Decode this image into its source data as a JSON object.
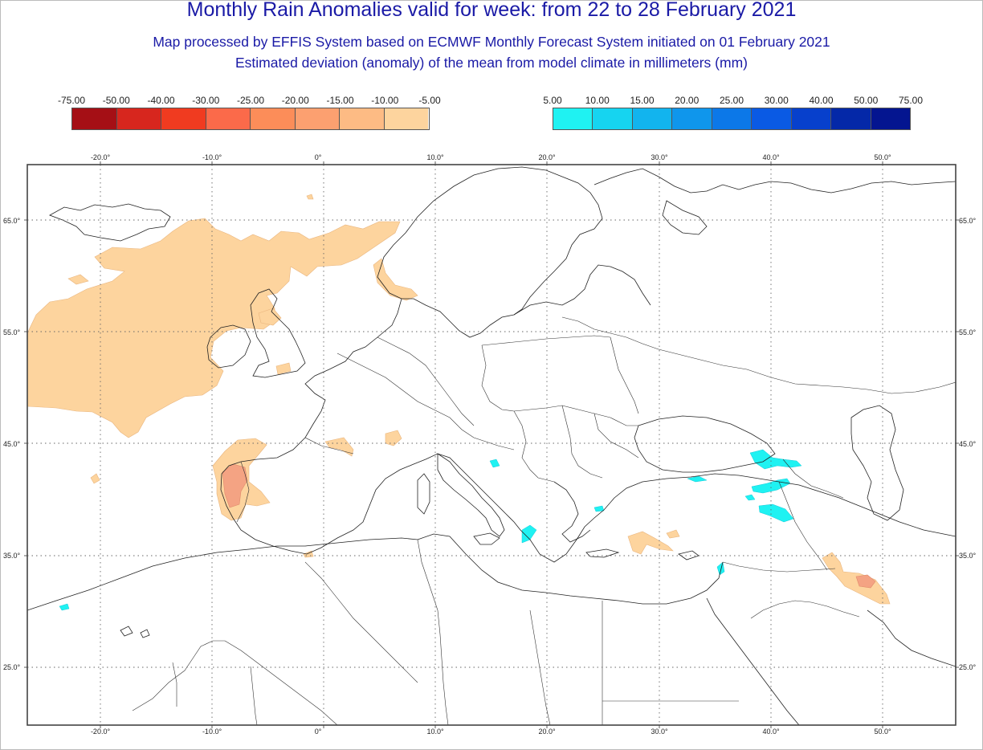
{
  "header": {
    "title": "Monthly Rain Anomalies valid for week: from 22 to 28 February 2021",
    "subtitle_line1": "Map processed by EFFIS System based on ECMWF Monthly Forecast System initiated on 01 February 2021",
    "subtitle_line2": "Estimated deviation (anomaly) of the mean from model climate in millimeters (mm)"
  },
  "legend_negative": {
    "labels": [
      "-75.00",
      "-50.00",
      "-40.00",
      "-30.00",
      "-25.00",
      "-20.00",
      "-15.00",
      "-10.00",
      "-5.00"
    ],
    "colors": [
      "#a50f15",
      "#d7261e",
      "#f03b20",
      "#fb6a4a",
      "#fc8d59",
      "#fca070",
      "#fdbb84",
      "#fdd49e"
    ]
  },
  "legend_positive": {
    "labels": [
      "5.00",
      "10.00",
      "15.00",
      "20.00",
      "25.00",
      "30.00",
      "40.00",
      "50.00",
      "75.00"
    ],
    "colors": [
      "#1ff2f2",
      "#16d4f0",
      "#12b4ee",
      "#0f96ec",
      "#0c78e8",
      "#0a5ae4",
      "#0740cc",
      "#0428a8",
      "#041590"
    ]
  },
  "map": {
    "lon_labels": [
      "-20.0°",
      "-10.0°",
      "0°",
      "10.0°",
      "20.0°",
      "30.0°",
      "40.0°",
      "50.0°"
    ],
    "lat_labels": [
      "65.0°",
      "55.0°",
      "45.0°",
      "35.0°",
      "25.0°"
    ],
    "lon_range": [
      -26.5,
      56.5
    ],
    "lat_range": [
      20,
      69
    ],
    "anomaly_colors": {
      "dry_light": "#fdd49e",
      "dry_medium": "#fcb98f",
      "dry_strong": "#f4a383",
      "wet": "#1ff2f2"
    }
  }
}
